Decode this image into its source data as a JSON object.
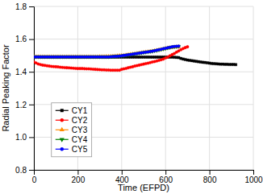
{
  "chart_data": {
    "type": "line",
    "xlabel": "Time (EFPD)",
    "ylabel": "Radial Peaking Factor",
    "xlim": [
      0,
      1000
    ],
    "ylim": [
      0.8,
      1.8
    ],
    "xticks": [
      0,
      200,
      400,
      600,
      800,
      1000
    ],
    "yticks": [
      0.8,
      {
        "value": 1.0,
        "label": "1.0"
      },
      1.2,
      1.4,
      1.6,
      1.8
    ],
    "grid": true,
    "legend": "lower left",
    "series": [
      {
        "name": "CY1",
        "color": "#000000",
        "marker": "square",
        "x": [
          0,
          10,
          20,
          30,
          40,
          50,
          60,
          70,
          80,
          90,
          100,
          110,
          120,
          130,
          140,
          150,
          160,
          170,
          180,
          190,
          200,
          210,
          220,
          230,
          240,
          250,
          260,
          270,
          280,
          290,
          300,
          310,
          320,
          330,
          340,
          350,
          360,
          370,
          380,
          390,
          400,
          410,
          420,
          430,
          440,
          450,
          460,
          470,
          480,
          490,
          500,
          510,
          520,
          530,
          540,
          550,
          560,
          570,
          580,
          590,
          600,
          610,
          620,
          630,
          640,
          650,
          660,
          670,
          680,
          690,
          700,
          710,
          720,
          730,
          740,
          750,
          760,
          770,
          780,
          790,
          800,
          810,
          820,
          830,
          840,
          850,
          860,
          870,
          880,
          890,
          900,
          910,
          920
        ],
        "values": [
          1.49,
          1.491,
          1.491,
          1.49,
          1.49,
          1.49,
          1.49,
          1.49,
          1.49,
          1.49,
          1.49,
          1.49,
          1.49,
          1.49,
          1.49,
          1.49,
          1.49,
          1.49,
          1.49,
          1.49,
          1.49,
          1.49,
          1.49,
          1.49,
          1.49,
          1.49,
          1.49,
          1.49,
          1.49,
          1.49,
          1.49,
          1.49,
          1.49,
          1.49,
          1.49,
          1.49,
          1.49,
          1.49,
          1.49,
          1.49,
          1.49,
          1.49,
          1.49,
          1.49,
          1.49,
          1.49,
          1.49,
          1.49,
          1.49,
          1.49,
          1.49,
          1.49,
          1.49,
          1.49,
          1.49,
          1.49,
          1.49,
          1.49,
          1.49,
          1.49,
          1.49,
          1.49,
          1.49,
          1.49,
          1.489,
          1.488,
          1.487,
          1.482,
          1.478,
          1.475,
          1.472,
          1.47,
          1.468,
          1.466,
          1.464,
          1.462,
          1.46,
          1.458,
          1.457,
          1.455,
          1.453,
          1.451,
          1.45,
          1.449,
          1.448,
          1.447,
          1.447,
          1.446,
          1.446,
          1.445,
          1.445,
          1.445,
          1.444
        ]
      },
      {
        "name": "CY2",
        "color": "#ff0000",
        "marker": "circle",
        "x": [
          0,
          10,
          20,
          30,
          40,
          50,
          60,
          70,
          80,
          90,
          100,
          110,
          120,
          130,
          140,
          150,
          160,
          170,
          180,
          190,
          200,
          210,
          220,
          230,
          240,
          250,
          260,
          270,
          280,
          290,
          300,
          310,
          320,
          330,
          340,
          350,
          360,
          370,
          380,
          390,
          400,
          410,
          420,
          430,
          440,
          450,
          460,
          470,
          480,
          490,
          500,
          510,
          520,
          530,
          540,
          550,
          560,
          570,
          580,
          590,
          600,
          610,
          620,
          630,
          640,
          650,
          660,
          670,
          680,
          690,
          700
        ],
        "values": [
          1.46,
          1.454,
          1.448,
          1.444,
          1.441,
          1.439,
          1.437,
          1.435,
          1.433,
          1.432,
          1.431,
          1.43,
          1.428,
          1.427,
          1.426,
          1.425,
          1.424,
          1.423,
          1.422,
          1.421,
          1.42,
          1.42,
          1.42,
          1.419,
          1.418,
          1.418,
          1.417,
          1.416,
          1.415,
          1.414,
          1.413,
          1.412,
          1.412,
          1.411,
          1.411,
          1.41,
          1.41,
          1.41,
          1.41,
          1.41,
          1.415,
          1.418,
          1.421,
          1.425,
          1.428,
          1.431,
          1.435,
          1.438,
          1.441,
          1.444,
          1.447,
          1.45,
          1.453,
          1.456,
          1.46,
          1.463,
          1.466,
          1.47,
          1.474,
          1.478,
          1.485,
          1.49,
          1.498,
          1.505,
          1.512,
          1.52,
          1.528,
          1.535,
          1.542,
          1.548,
          1.553
        ]
      },
      {
        "name": "CY3",
        "color": "#ff8c00",
        "marker": "triangle-up",
        "x": [
          0,
          10,
          20,
          30,
          40,
          50,
          60,
          70,
          80,
          90,
          100,
          110,
          120,
          130,
          140,
          150,
          160,
          170,
          180,
          190,
          200,
          210,
          220,
          230,
          240,
          250,
          260,
          270,
          280,
          290,
          300,
          310,
          320,
          330,
          340,
          350,
          360,
          370,
          380,
          390,
          400,
          410,
          420,
          430,
          440,
          450,
          460,
          470,
          480,
          490,
          500,
          510,
          520,
          530,
          540,
          550,
          560,
          570,
          580,
          590,
          600,
          610,
          620,
          630,
          640,
          650,
          660
        ],
        "values": [
          1.492,
          1.492,
          1.492,
          1.492,
          1.492,
          1.492,
          1.492,
          1.492,
          1.492,
          1.492,
          1.492,
          1.492,
          1.492,
          1.492,
          1.492,
          1.492,
          1.492,
          1.492,
          1.492,
          1.492,
          1.492,
          1.492,
          1.492,
          1.492,
          1.492,
          1.492,
          1.492,
          1.492,
          1.492,
          1.492,
          1.493,
          1.493,
          1.493,
          1.494,
          1.494,
          1.495,
          1.496,
          1.497,
          1.498,
          1.499,
          1.5,
          1.501,
          1.503,
          1.505,
          1.507,
          1.509,
          1.511,
          1.513,
          1.515,
          1.517,
          1.519,
          1.521,
          1.523,
          1.525,
          1.527,
          1.53,
          1.532,
          1.535,
          1.537,
          1.54,
          1.543,
          1.546,
          1.548,
          1.55,
          1.551,
          1.552,
          1.553
        ]
      },
      {
        "name": "CY4",
        "color": "#008000",
        "marker": "triangle-down",
        "x": [
          0,
          10,
          20,
          30,
          40,
          50,
          60,
          70,
          80,
          90,
          100,
          110,
          120,
          130,
          140,
          150,
          160,
          170,
          180,
          190,
          200,
          210,
          220,
          230,
          240,
          250,
          260,
          270,
          280,
          290,
          300,
          310,
          320,
          330,
          340,
          350,
          360,
          370,
          380,
          390,
          400,
          410,
          420,
          430,
          440,
          450,
          460,
          470,
          480,
          490,
          500,
          510,
          520,
          530,
          540,
          550,
          560,
          570,
          580,
          590,
          600,
          610,
          620,
          630,
          640,
          650,
          660
        ],
        "values": [
          1.492,
          1.492,
          1.492,
          1.492,
          1.492,
          1.492,
          1.492,
          1.492,
          1.492,
          1.492,
          1.492,
          1.492,
          1.492,
          1.492,
          1.492,
          1.492,
          1.492,
          1.492,
          1.492,
          1.492,
          1.492,
          1.492,
          1.492,
          1.492,
          1.492,
          1.492,
          1.492,
          1.492,
          1.492,
          1.492,
          1.492,
          1.492,
          1.492,
          1.492,
          1.492,
          1.493,
          1.494,
          1.495,
          1.496,
          1.497,
          1.498,
          1.5,
          1.502,
          1.504,
          1.506,
          1.508,
          1.51,
          1.512,
          1.514,
          1.516,
          1.518,
          1.52,
          1.522,
          1.524,
          1.526,
          1.529,
          1.531,
          1.534,
          1.537,
          1.54,
          1.543,
          1.546,
          1.549,
          1.552,
          1.554,
          1.555,
          1.556
        ]
      },
      {
        "name": "CY5",
        "color": "#0000ff",
        "marker": "circle",
        "x": [
          0,
          10,
          20,
          30,
          40,
          50,
          60,
          70,
          80,
          90,
          100,
          110,
          120,
          130,
          140,
          150,
          160,
          170,
          180,
          190,
          200,
          210,
          220,
          230,
          240,
          250,
          260,
          270,
          280,
          290,
          300,
          310,
          320,
          330,
          340,
          350,
          360,
          370,
          380,
          390,
          400,
          410,
          420,
          430,
          440,
          450,
          460,
          470,
          480,
          490,
          500,
          510,
          520,
          530,
          540,
          550,
          560,
          570,
          580,
          590,
          600,
          610,
          620,
          630,
          640,
          650,
          660
        ],
        "values": [
          1.491,
          1.491,
          1.491,
          1.491,
          1.491,
          1.491,
          1.491,
          1.491,
          1.491,
          1.491,
          1.491,
          1.491,
          1.491,
          1.491,
          1.491,
          1.491,
          1.491,
          1.491,
          1.491,
          1.491,
          1.491,
          1.491,
          1.491,
          1.491,
          1.491,
          1.491,
          1.491,
          1.491,
          1.491,
          1.491,
          1.491,
          1.491,
          1.491,
          1.491,
          1.491,
          1.492,
          1.493,
          1.494,
          1.495,
          1.496,
          1.498,
          1.5,
          1.502,
          1.504,
          1.506,
          1.508,
          1.51,
          1.512,
          1.514,
          1.516,
          1.518,
          1.52,
          1.522,
          1.524,
          1.526,
          1.529,
          1.532,
          1.535,
          1.538,
          1.541,
          1.544,
          1.547,
          1.55,
          1.553,
          1.555,
          1.556,
          1.557
        ]
      }
    ]
  }
}
